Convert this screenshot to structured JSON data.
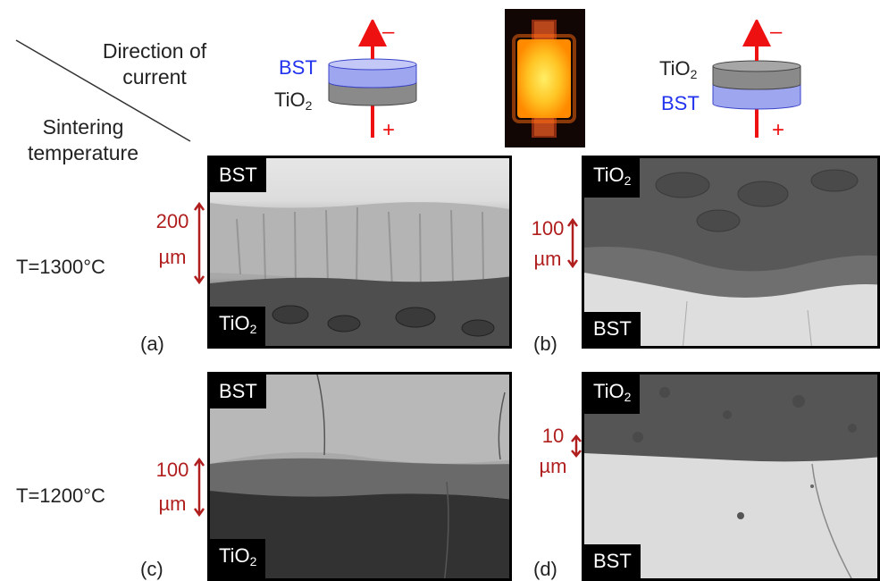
{
  "header": {
    "direction_line1": "Direction of",
    "direction_line2": "current",
    "sintering_line1": "Sintering",
    "sintering_line2": "temperature"
  },
  "diagrams": {
    "left": {
      "top_label": "BST",
      "bottom_label_main": "TiO",
      "bottom_label_sub": "2",
      "minus": "–",
      "plus": "+"
    },
    "right": {
      "top_label_main": "TiO",
      "top_label_sub": "2",
      "bottom_label": "BST",
      "minus": "–",
      "plus": "+"
    }
  },
  "rows": [
    {
      "label": "T=1300°C"
    },
    {
      "label": "T=1200°C"
    }
  ],
  "panels": [
    {
      "letter": "(a)",
      "top_tag": "BST",
      "bottom_tag_main": "TiO",
      "bottom_tag_sub": "2",
      "scale_line1": "200",
      "scale_line2": "µm"
    },
    {
      "letter": "(b)",
      "top_tag_main": "TiO",
      "top_tag_sub": "2",
      "bottom_tag": "BST",
      "scale_line1": "100",
      "scale_line2": "µm"
    },
    {
      "letter": "(c)",
      "top_tag": "BST",
      "bottom_tag_main": "TiO",
      "bottom_tag_sub": "2",
      "scale_line1": "100",
      "scale_line2": "µm"
    },
    {
      "letter": "(d)",
      "top_tag_main": "TiO",
      "top_tag_sub": "2",
      "bottom_tag": "BST",
      "scale_line1": "10",
      "scale_line2": "µm"
    }
  ],
  "colors": {
    "scale_red": "#b01e1e",
    "arrow_red": "#ee1111",
    "bst_blue": "#2233ee",
    "tio2_gray": "#8a8a8a"
  }
}
